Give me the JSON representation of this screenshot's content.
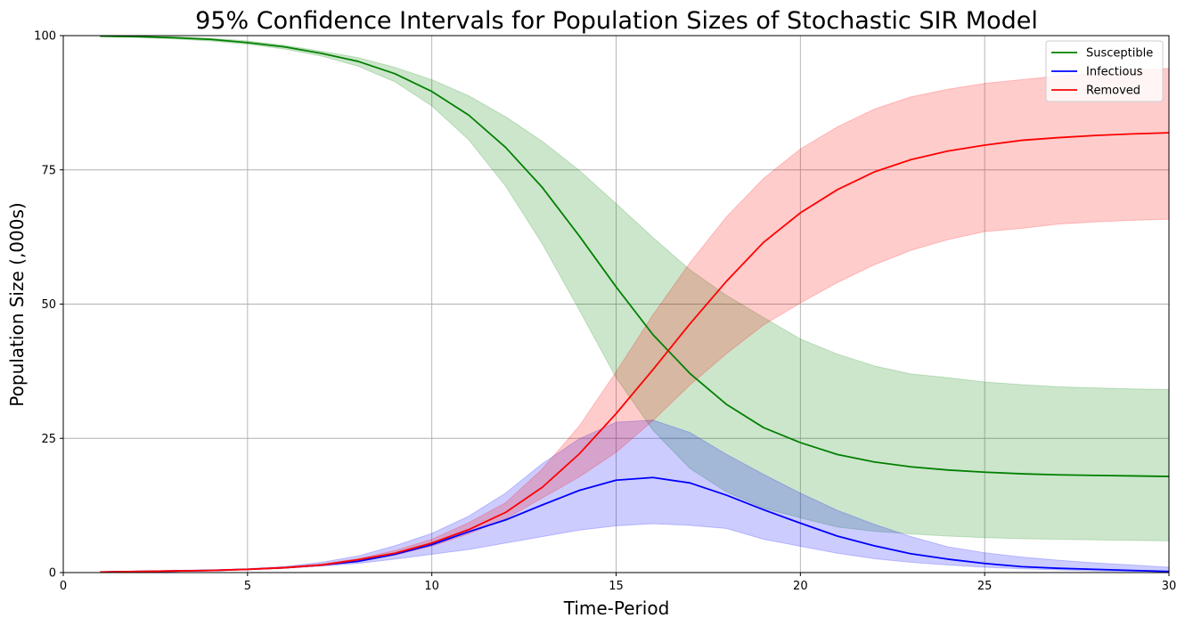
{
  "chart_data": {
    "type": "line",
    "title": "95% Confidence Intervals for Population Sizes of Stochastic SIR Model",
    "xlabel": "Time-Period",
    "ylabel": "Population Size (,000s)",
    "xlim": [
      0,
      30
    ],
    "ylim": [
      0,
      100
    ],
    "xticks": [
      0,
      5,
      10,
      15,
      20,
      25,
      30
    ],
    "yticks": [
      0,
      25,
      50,
      75,
      100
    ],
    "grid": true,
    "legend_position": "top-right",
    "x": [
      1,
      2,
      3,
      4,
      5,
      6,
      7,
      8,
      9,
      10,
      11,
      12,
      13,
      14,
      15,
      16,
      17,
      18,
      19,
      20,
      21,
      22,
      23,
      24,
      25,
      26,
      27,
      28,
      29,
      30
    ],
    "series": [
      {
        "name": "Susceptible",
        "color": "#008000",
        "fill": "#008000",
        "values": [
          99.9,
          99.8,
          99.6,
          99.3,
          98.7,
          97.9,
          96.7,
          95.2,
          92.9,
          89.6,
          85.2,
          79.2,
          71.7,
          62.7,
          53.2,
          44.3,
          37.1,
          31.3,
          27.0,
          24.2,
          22.0,
          20.6,
          19.7,
          19.1,
          18.7,
          18.4,
          18.2,
          18.1,
          18.0,
          17.9
        ],
        "lower": [
          99.9,
          99.7,
          99.4,
          99.0,
          98.4,
          97.5,
          96.2,
          94.3,
          91.4,
          86.9,
          80.6,
          72.0,
          61.2,
          48.9,
          36.3,
          26.5,
          19.4,
          15.0,
          12.0,
          10.2,
          8.5,
          7.7,
          7.2,
          6.8,
          6.5,
          6.3,
          6.2,
          6.1,
          6.0,
          5.9
        ],
        "upper": [
          100.0,
          99.9,
          99.8,
          99.5,
          99.0,
          98.2,
          97.1,
          95.9,
          94.1,
          91.8,
          88.8,
          84.9,
          80.3,
          74.9,
          68.7,
          62.4,
          56.4,
          51.6,
          47.5,
          43.5,
          40.7,
          38.5,
          37.0,
          36.3,
          35.5,
          35.0,
          34.6,
          34.4,
          34.2,
          34.1
        ]
      },
      {
        "name": "Infectious",
        "color": "#0000ff",
        "fill": "#0000ff",
        "values": [
          0.1,
          0.2,
          0.3,
          0.4,
          0.6,
          0.9,
          1.4,
          2.1,
          3.4,
          5.2,
          7.6,
          9.8,
          12.6,
          15.3,
          17.2,
          17.7,
          16.7,
          14.4,
          11.7,
          9.2,
          6.8,
          5.0,
          3.5,
          2.5,
          1.7,
          1.1,
          0.8,
          0.6,
          0.4,
          0.2
        ],
        "lower": [
          0.1,
          0.1,
          0.2,
          0.4,
          0.6,
          0.8,
          1.2,
          1.7,
          2.5,
          3.4,
          4.3,
          5.5,
          6.7,
          7.9,
          8.7,
          9.1,
          8.8,
          8.2,
          6.2,
          4.9,
          3.6,
          2.6,
          1.9,
          1.4,
          1.0,
          0.7,
          0.5,
          0.3,
          0.2,
          0.2
        ],
        "upper": [
          0.1,
          0.2,
          0.4,
          0.5,
          0.7,
          1.1,
          1.9,
          3.1,
          5.0,
          7.3,
          10.5,
          14.8,
          20.3,
          24.9,
          28.0,
          28.4,
          26.1,
          22.0,
          18.3,
          14.8,
          11.6,
          9.0,
          6.7,
          4.8,
          3.7,
          2.9,
          2.3,
          1.8,
          1.4,
          1.0
        ]
      },
      {
        "name": "Removed",
        "color": "#ff0000",
        "fill": "#ff0000",
        "values": [
          0.1,
          0.2,
          0.3,
          0.4,
          0.6,
          0.9,
          1.4,
          2.4,
          3.6,
          5.5,
          8.0,
          11.2,
          15.9,
          22.1,
          29.6,
          37.8,
          46.3,
          54.3,
          61.5,
          67.0,
          71.3,
          74.6,
          76.9,
          78.5,
          79.6,
          80.5,
          81.0,
          81.4,
          81.7,
          81.9
        ],
        "lower": [
          0.1,
          0.1,
          0.2,
          0.3,
          0.5,
          0.8,
          1.3,
          2.0,
          3.3,
          4.9,
          7.2,
          10.0,
          13.9,
          17.8,
          22.4,
          28.3,
          34.9,
          40.8,
          46.1,
          50.2,
          54.0,
          57.3,
          60.0,
          62.0,
          63.5,
          64.1,
          64.9,
          65.3,
          65.6,
          65.8
        ],
        "upper": [
          0.1,
          0.2,
          0.4,
          0.5,
          0.7,
          1.1,
          1.6,
          2.6,
          4.1,
          6.2,
          9.3,
          13.0,
          19.3,
          27.3,
          37.4,
          48.0,
          57.7,
          66.3,
          73.4,
          78.9,
          83.0,
          86.3,
          88.6,
          90.0,
          91.1,
          91.8,
          92.5,
          93.0,
          93.5,
          93.9
        ]
      }
    ]
  }
}
